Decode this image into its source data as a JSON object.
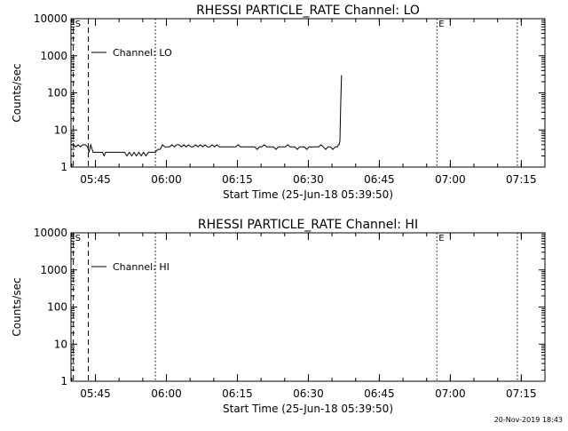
{
  "chart_data": [
    {
      "type": "line",
      "title": "RHESSI PARTICLE_RATE Channel: LO",
      "xlabel": "Start Time (25-Jun-18 05:39:50)",
      "ylabel": "Counts/sec",
      "yscale": "log",
      "ylim": [
        1,
        10000
      ],
      "xlim": [
        "05:39:50",
        "07:20:00"
      ],
      "x_ticks": [
        "05:45",
        "06:00",
        "06:15",
        "06:30",
        "06:45",
        "07:00",
        "07:15"
      ],
      "y_ticks": [
        "1",
        "10",
        "100",
        "1000",
        "10000"
      ],
      "legend": {
        "label": "Channel: LO",
        "placement": "top-left"
      },
      "markers": [
        {
          "time": "05:40:20",
          "label": "S",
          "style": "dashed"
        },
        {
          "time": "05:43:30",
          "label": "",
          "style": "dashed"
        },
        {
          "time": "05:57:40",
          "label": "",
          "style": "dotted"
        },
        {
          "time": "06:57:10",
          "label": "E",
          "style": "dotted"
        },
        {
          "time": "07:14:10",
          "label": "",
          "style": "dotted"
        }
      ],
      "series": [
        {
          "name": "Channel: LO",
          "x": [
            "05:39:50",
            "05:40:20",
            "05:40:50",
            "05:41:20",
            "05:41:50",
            "05:42:20",
            "05:42:50",
            "05:43:20",
            "05:43:40",
            "05:44:00",
            "05:44:30",
            "05:45:00",
            "05:45:30",
            "05:46:00",
            "05:46:30",
            "05:46:50",
            "05:47:10",
            "05:47:40",
            "05:48:10",
            "05:48:40",
            "05:49:10",
            "05:49:40",
            "05:50:10",
            "05:50:40",
            "05:51:10",
            "05:51:40",
            "05:52:10",
            "05:52:40",
            "05:53:10",
            "05:53:40",
            "05:54:10",
            "05:54:40",
            "05:55:10",
            "05:55:40",
            "05:56:10",
            "05:56:40",
            "05:57:10",
            "05:57:40",
            "05:58:10",
            "05:58:40",
            "05:59:10",
            "05:59:40",
            "06:00:10",
            "06:00:40",
            "06:01:10",
            "06:01:40",
            "06:02:10",
            "06:02:40",
            "06:03:10",
            "06:03:40",
            "06:04:10",
            "06:04:40",
            "06:05:10",
            "06:05:40",
            "06:06:10",
            "06:06:40",
            "06:07:10",
            "06:07:40",
            "06:08:10",
            "06:08:40",
            "06:09:10",
            "06:09:40",
            "06:10:10",
            "06:10:40",
            "06:11:10",
            "06:11:40",
            "06:12:10",
            "06:12:40",
            "06:13:10",
            "06:13:40",
            "06:14:10",
            "06:14:40",
            "06:15:10",
            "06:15:40",
            "06:16:10",
            "06:16:40",
            "06:17:10",
            "06:17:40",
            "06:18:10",
            "06:18:40",
            "06:19:10",
            "06:19:40",
            "06:20:10",
            "06:20:40",
            "06:21:10",
            "06:21:40",
            "06:22:10",
            "06:22:40",
            "06:23:10",
            "06:23:40",
            "06:24:10",
            "06:24:40",
            "06:25:10",
            "06:25:40",
            "06:26:10",
            "06:26:40",
            "06:27:10",
            "06:27:40",
            "06:28:10",
            "06:28:40",
            "06:29:10",
            "06:29:40",
            "06:30:10",
            "06:30:40",
            "06:31:10",
            "06:31:40",
            "06:32:10",
            "06:32:40",
            "06:33:10",
            "06:33:40",
            "06:34:10",
            "06:34:40",
            "06:35:10",
            "06:35:40",
            "06:36:00",
            "06:36:10",
            "06:36:20",
            "06:36:30",
            "06:36:40",
            "06:36:50",
            "06:37:00"
          ],
          "values": [
            4,
            4,
            3.5,
            4,
            3.5,
            4,
            4,
            3.5,
            2.5,
            4,
            2.5,
            2.5,
            2.5,
            2.5,
            2.5,
            2,
            2.5,
            2.5,
            2.5,
            2.5,
            2.5,
            2.5,
            2.5,
            2.5,
            2.5,
            2,
            2.5,
            2,
            2.5,
            2,
            2.5,
            2,
            2.5,
            2,
            2.5,
            2.5,
            2.5,
            2.5,
            3,
            3,
            4,
            3.5,
            3.5,
            3.5,
            4,
            3.5,
            4,
            4,
            3.5,
            4,
            3.5,
            4,
            3.5,
            3.5,
            4,
            3.5,
            4,
            3.5,
            4,
            3.5,
            3.5,
            4,
            3.5,
            4,
            3.5,
            3.5,
            3.5,
            3.5,
            3.5,
            3.5,
            3.5,
            3.5,
            4,
            3.5,
            3.5,
            3.5,
            3.5,
            3.5,
            3.5,
            3.5,
            3,
            3.5,
            3.5,
            4,
            3.5,
            3.5,
            3.5,
            3.5,
            3,
            3.5,
            3.5,
            3.5,
            3.5,
            4,
            3.5,
            3.5,
            3.5,
            3,
            3.5,
            3.5,
            3.5,
            3,
            3.5,
            3.5,
            3.5,
            3.5,
            3.5,
            4,
            3.5,
            3,
            3.5,
            3.5,
            3,
            3.5,
            3.5,
            3.5,
            4,
            4,
            5,
            50,
            300
          ]
        }
      ]
    },
    {
      "type": "line",
      "title": "RHESSI PARTICLE_RATE Channel: HI",
      "xlabel": "Start Time (25-Jun-18 05:39:50)",
      "ylabel": "Counts/sec",
      "yscale": "log",
      "ylim": [
        1,
        10000
      ],
      "xlim": [
        "05:39:50",
        "07:20:00"
      ],
      "x_ticks": [
        "05:45",
        "06:00",
        "06:15",
        "06:30",
        "06:45",
        "07:00",
        "07:15"
      ],
      "y_ticks": [
        "1",
        "10",
        "100",
        "1000",
        "10000"
      ],
      "legend": {
        "label": "Channel: HI",
        "placement": "top-left"
      },
      "markers": [
        {
          "time": "05:40:20",
          "label": "S",
          "style": "dashed"
        },
        {
          "time": "05:43:30",
          "label": "",
          "style": "dashed"
        },
        {
          "time": "05:57:40",
          "label": "",
          "style": "dotted"
        },
        {
          "time": "06:57:10",
          "label": "E",
          "style": "dotted"
        },
        {
          "time": "07:14:10",
          "label": "",
          "style": "dotted"
        }
      ],
      "series": [
        {
          "name": "Channel: HI",
          "x": [],
          "values": []
        }
      ]
    }
  ],
  "footer": {
    "timestamp": "20-Nov-2019 18:43"
  }
}
